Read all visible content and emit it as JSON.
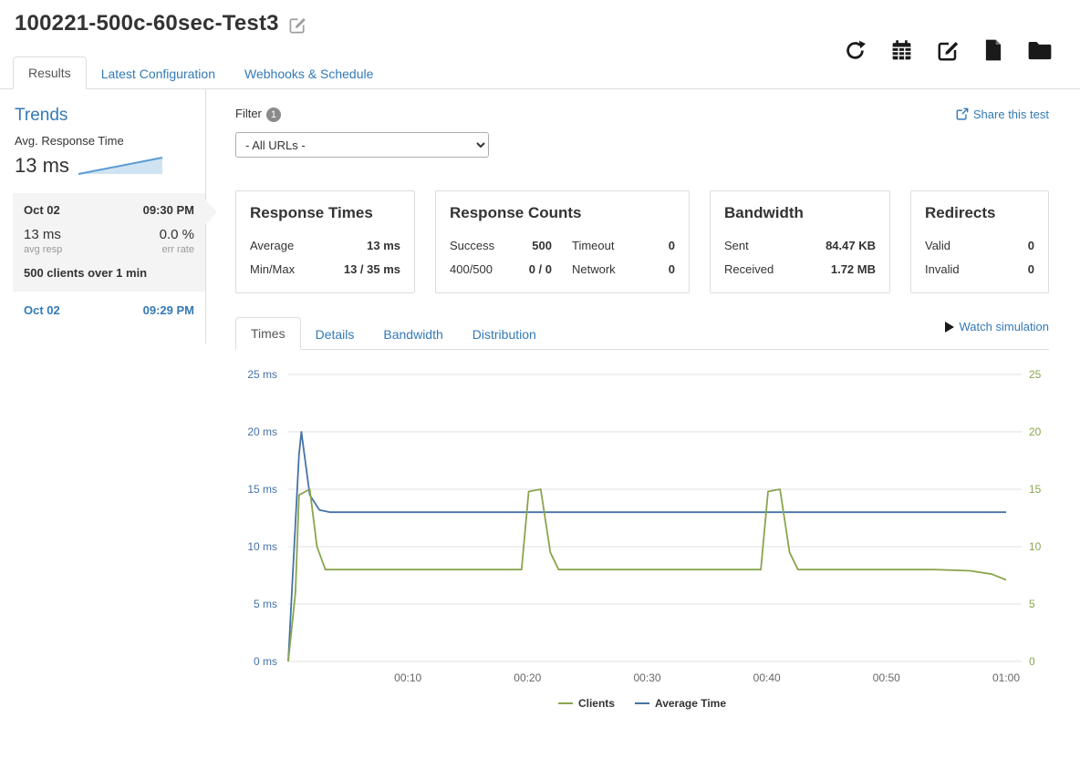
{
  "header": {
    "title": "100221-500c-60sec-Test3"
  },
  "nav_tabs": [
    {
      "label": "Results",
      "active": true
    },
    {
      "label": "Latest Configuration",
      "active": false
    },
    {
      "label": "Webhooks & Schedule",
      "active": false
    }
  ],
  "sidebar": {
    "trends_title": "Trends",
    "metric_label": "Avg. Response Time",
    "metric_value": "13 ms",
    "selected_run": {
      "date": "Oct 02",
      "time": "09:30 PM",
      "avg_resp_value": "13 ms",
      "avg_resp_label": "avg resp",
      "err_rate_value": "0.0 %",
      "err_rate_label": "err rate",
      "summary": "500 clients over 1 min"
    },
    "runs": [
      {
        "date": "Oct 02",
        "time": "09:29 PM"
      }
    ]
  },
  "filter": {
    "label": "Filter",
    "badge": "1",
    "selected_option": "- All URLs -"
  },
  "actions": {
    "share": "Share this test",
    "watch": "Watch simulation"
  },
  "cards": {
    "response_times": {
      "title": "Response Times",
      "rows": [
        {
          "label": "Average",
          "value": "13 ms"
        },
        {
          "label": "Min/Max",
          "value": "13 / 35 ms"
        }
      ]
    },
    "response_counts": {
      "title": "Response Counts",
      "rows": [
        {
          "label": "Success",
          "value": "500",
          "label2": "Timeout",
          "value2": "0"
        },
        {
          "label": "400/500",
          "value": "0 / 0",
          "label2": "Network",
          "value2": "0"
        }
      ]
    },
    "bandwidth": {
      "title": "Bandwidth",
      "rows": [
        {
          "label": "Sent",
          "value": "84.47 KB"
        },
        {
          "label": "Received",
          "value": "1.72 MB"
        }
      ]
    },
    "redirects": {
      "title": "Redirects",
      "rows": [
        {
          "label": "Valid",
          "value": "0"
        },
        {
          "label": "Invalid",
          "value": "0"
        }
      ]
    }
  },
  "chart_tabs": [
    {
      "label": "Times",
      "active": true
    },
    {
      "label": "Details",
      "active": false
    },
    {
      "label": "Bandwidth",
      "active": false
    },
    {
      "label": "Distribution",
      "active": false
    }
  ],
  "colors": {
    "link_blue": "#337ab7",
    "avg_time_blue": "#4572A7",
    "clients_green": "#89A54E"
  },
  "chart_data": {
    "type": "line",
    "title": "",
    "x_unit": "elapsed time (mm:ss)",
    "xlim": [
      0,
      60
    ],
    "ylim": [
      0,
      25
    ],
    "grid": true,
    "legend_position": "bottom",
    "x_tick_values": [
      10,
      20,
      30,
      40,
      50,
      60
    ],
    "x_tick_labels": [
      "00:10",
      "00:20",
      "00:30",
      "00:40",
      "00:50",
      "01:00"
    ],
    "y_tick_values": [
      0,
      5,
      10,
      15,
      20,
      25
    ],
    "y_left_labels": [
      "0 ms",
      "5 ms",
      "10 ms",
      "15 ms",
      "20 ms",
      "25 ms"
    ],
    "y_right_labels": [
      "0",
      "5",
      "10",
      "15",
      "20",
      "25"
    ],
    "axis_left_color": "#4572A7",
    "axis_right_color": "#89A54E",
    "series": [
      {
        "name": "Average Time",
        "color": "#4572A7",
        "axis": "left",
        "x": [
          0,
          0.9,
          1.1,
          1.8,
          2.6,
          3.5,
          60
        ],
        "y": [
          0,
          18,
          20,
          14.5,
          13.2,
          13,
          13
        ]
      },
      {
        "name": "Clients",
        "color": "#89A54E",
        "axis": "right",
        "x": [
          0,
          0.6,
          0.9,
          1.8,
          2.4,
          3.1,
          19.5,
          20.1,
          21.1,
          21.9,
          22.6,
          39.5,
          40.1,
          41.1,
          41.9,
          42.6,
          54,
          57,
          58.8,
          60
        ],
        "y": [
          0,
          6,
          14.5,
          15,
          10,
          8,
          8,
          14.8,
          15,
          9.5,
          8,
          8,
          14.8,
          15,
          9.5,
          8,
          8,
          7.9,
          7.6,
          7.1
        ]
      }
    ],
    "legend_items": [
      "Clients",
      "Average Time"
    ]
  }
}
